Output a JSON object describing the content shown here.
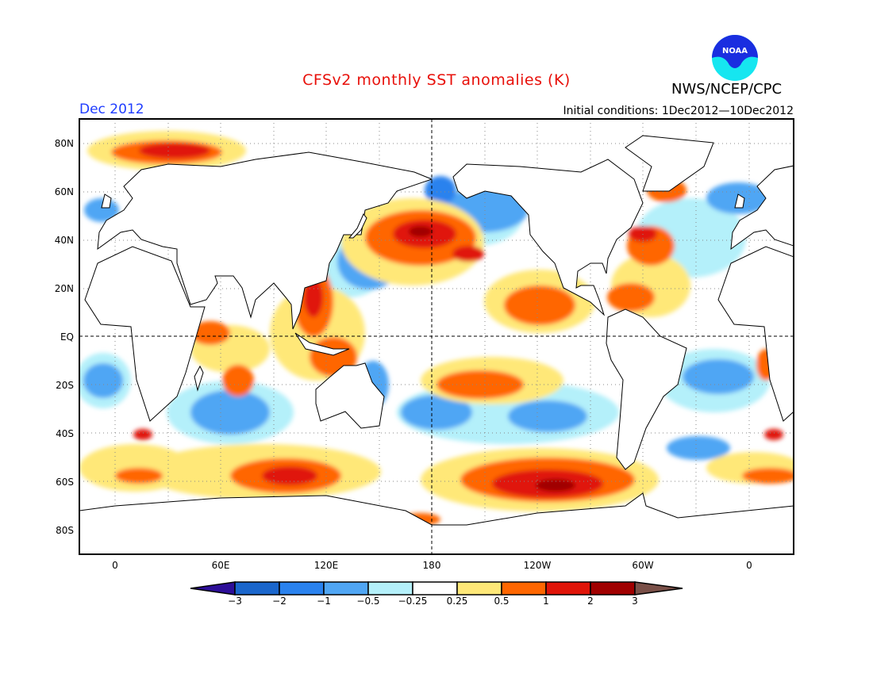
{
  "title": "CFSv2 monthly SST anomalies (K)",
  "month": "Dec 2012",
  "initial_conditions": "Initial conditions: 1Dec2012—10Dec2012",
  "agency": "NWS/NCEP/CPC",
  "logo_text": "NOAA",
  "lat_labels": [
    "80N",
    "60N",
    "40N",
    "20N",
    "EQ",
    "20S",
    "40S",
    "60S",
    "80S"
  ],
  "lon_labels": [
    "0",
    "60E",
    "120E",
    "180",
    "120W",
    "60W",
    "0"
  ],
  "colorbar": {
    "labels": [
      "−3",
      "−2",
      "−1",
      "−0.5",
      "−0.25",
      "0.25",
      "0.5",
      "1",
      "2",
      "3"
    ],
    "colors": [
      "#2d0e98",
      "#1a66cc",
      "#2a82ee",
      "#50a6f4",
      "#b4f0fa",
      "#ffffff",
      "#ffe878",
      "#ff6600",
      "#e01408",
      "#a00000",
      "#7a5048"
    ]
  }
}
